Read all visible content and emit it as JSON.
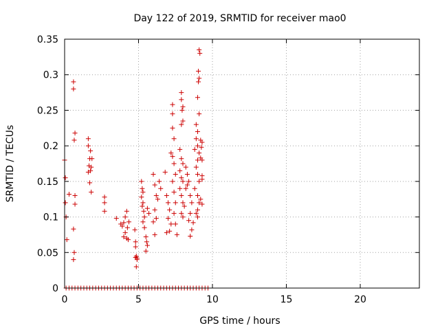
{
  "chart_data": {
    "type": "scatter",
    "title": "Day 122 of 2019, SRMTID for receiver mao0",
    "xlabel": "GPS time / hours",
    "ylabel": "SRMTID / TECUs",
    "xlim": [
      0,
      24
    ],
    "ylim": [
      0,
      0.35
    ],
    "xticks": [
      0,
      5,
      10,
      15,
      20
    ],
    "yticks": [
      0,
      0.05,
      0.1,
      0.15,
      0.2,
      0.25,
      0.3,
      0.35
    ],
    "xtick_labels": [
      "0",
      "5",
      "10",
      "15",
      "20"
    ],
    "ytick_labels": [
      "0",
      "0.05",
      "0.1",
      "0.15",
      "0.2",
      "0.25",
      "0.3",
      "0.35"
    ],
    "grid": true,
    "marker": "+",
    "color": "#cc0000",
    "series": [
      {
        "name": "SRMTID",
        "points": [
          [
            0.0,
            0.18
          ],
          [
            0.05,
            0.155
          ],
          [
            0.05,
            0.12
          ],
          [
            0.1,
            0.1
          ],
          [
            0.15,
            0.068
          ],
          [
            0.3,
            0.132
          ],
          [
            0.6,
            0.29
          ],
          [
            0.6,
            0.28
          ],
          [
            0.7,
            0.218
          ],
          [
            0.65,
            0.208
          ],
          [
            0.7,
            0.13
          ],
          [
            0.7,
            0.118
          ],
          [
            0.6,
            0.083
          ],
          [
            0.65,
            0.05
          ],
          [
            0.6,
            0.04
          ],
          [
            1.6,
            0.21
          ],
          [
            1.6,
            0.2
          ],
          [
            1.75,
            0.193
          ],
          [
            1.7,
            0.182
          ],
          [
            1.85,
            0.182
          ],
          [
            1.65,
            0.172
          ],
          [
            1.8,
            0.17
          ],
          [
            1.75,
            0.165
          ],
          [
            1.6,
            0.163
          ],
          [
            1.7,
            0.148
          ],
          [
            1.8,
            0.135
          ],
          [
            2.7,
            0.128
          ],
          [
            2.7,
            0.12
          ],
          [
            2.7,
            0.108
          ],
          [
            3.5,
            0.098
          ],
          [
            3.8,
            0.09
          ],
          [
            3.9,
            0.087
          ],
          [
            4.0,
            0.092
          ],
          [
            4.1,
            0.1
          ],
          [
            4.2,
            0.108
          ],
          [
            4.0,
            0.072
          ],
          [
            4.1,
            0.078
          ],
          [
            4.2,
            0.07
          ],
          [
            4.3,
            0.068
          ],
          [
            4.25,
            0.085
          ],
          [
            4.35,
            0.093
          ],
          [
            4.8,
            0.065
          ],
          [
            4.8,
            0.058
          ],
          [
            4.85,
            0.045
          ],
          [
            4.8,
            0.043
          ],
          [
            4.9,
            0.04
          ],
          [
            4.85,
            0.03
          ],
          [
            4.9,
            0.042
          ],
          [
            4.75,
            0.082
          ],
          [
            5.2,
            0.15
          ],
          [
            5.25,
            0.14
          ],
          [
            5.3,
            0.135
          ],
          [
            5.2,
            0.128
          ],
          [
            5.3,
            0.12
          ],
          [
            5.25,
            0.115
          ],
          [
            5.35,
            0.108
          ],
          [
            5.4,
            0.1
          ],
          [
            5.3,
            0.093
          ],
          [
            5.4,
            0.085
          ],
          [
            5.5,
            0.072
          ],
          [
            5.55,
            0.065
          ],
          [
            5.6,
            0.06
          ],
          [
            5.5,
            0.052
          ],
          [
            5.6,
            0.112
          ],
          [
            5.7,
            0.105
          ],
          [
            6.0,
            0.16
          ],
          [
            6.1,
            0.145
          ],
          [
            6.2,
            0.13
          ],
          [
            6.3,
            0.125
          ],
          [
            6.1,
            0.11
          ],
          [
            6.2,
            0.098
          ],
          [
            6.0,
            0.093
          ],
          [
            6.1,
            0.075
          ],
          [
            6.4,
            0.15
          ],
          [
            6.5,
            0.14
          ],
          [
            6.8,
            0.163
          ],
          [
            6.9,
            0.13
          ],
          [
            7.0,
            0.12
          ],
          [
            7.1,
            0.11
          ],
          [
            7.0,
            0.098
          ],
          [
            7.2,
            0.09
          ],
          [
            6.9,
            0.078
          ],
          [
            7.1,
            0.08
          ],
          [
            7.3,
            0.258
          ],
          [
            7.3,
            0.245
          ],
          [
            7.3,
            0.225
          ],
          [
            7.4,
            0.21
          ],
          [
            7.2,
            0.19
          ],
          [
            7.4,
            0.175
          ],
          [
            7.5,
            0.16
          ],
          [
            7.3,
            0.15
          ],
          [
            7.4,
            0.135
          ],
          [
            7.5,
            0.12
          ],
          [
            7.4,
            0.105
          ],
          [
            7.5,
            0.09
          ],
          [
            7.6,
            0.075
          ],
          [
            7.3,
            0.185
          ],
          [
            7.8,
            0.195
          ],
          [
            7.9,
            0.182
          ],
          [
            8.0,
            0.175
          ],
          [
            7.8,
            0.165
          ],
          [
            7.9,
            0.155
          ],
          [
            8.0,
            0.15
          ],
          [
            7.8,
            0.14
          ],
          [
            7.9,
            0.13
          ],
          [
            8.0,
            0.12
          ],
          [
            8.1,
            0.115
          ],
          [
            7.9,
            0.105
          ],
          [
            8.0,
            0.1
          ],
          [
            7.9,
            0.275
          ],
          [
            7.9,
            0.265
          ],
          [
            8.0,
            0.255
          ],
          [
            7.95,
            0.25
          ],
          [
            8.0,
            0.235
          ],
          [
            7.9,
            0.23
          ],
          [
            8.2,
            0.17
          ],
          [
            8.3,
            0.16
          ],
          [
            8.4,
            0.15
          ],
          [
            8.3,
            0.145
          ],
          [
            8.2,
            0.14
          ],
          [
            8.5,
            0.13
          ],
          [
            8.6,
            0.12
          ],
          [
            8.5,
            0.105
          ],
          [
            8.7,
            0.092
          ],
          [
            8.6,
            0.082
          ],
          [
            8.5,
            0.073
          ],
          [
            8.4,
            0.095
          ],
          [
            8.9,
            0.23
          ],
          [
            9.0,
            0.22
          ],
          [
            8.9,
            0.21
          ],
          [
            9.0,
            0.2
          ],
          [
            8.8,
            0.195
          ],
          [
            9.1,
            0.19
          ],
          [
            9.0,
            0.18
          ],
          [
            8.9,
            0.17
          ],
          [
            9.0,
            0.16
          ],
          [
            9.1,
            0.15
          ],
          [
            8.8,
            0.14
          ],
          [
            9.0,
            0.13
          ],
          [
            9.1,
            0.12
          ],
          [
            9.0,
            0.11
          ],
          [
            8.9,
            0.105
          ],
          [
            9.0,
            0.1
          ],
          [
            9.1,
            0.335
          ],
          [
            9.15,
            0.33
          ],
          [
            9.05,
            0.305
          ],
          [
            9.1,
            0.295
          ],
          [
            9.05,
            0.29
          ],
          [
            9.0,
            0.268
          ],
          [
            9.1,
            0.245
          ],
          [
            9.2,
            0.208
          ],
          [
            9.3,
            0.205
          ],
          [
            9.25,
            0.198
          ],
          [
            9.2,
            0.183
          ],
          [
            9.3,
            0.18
          ],
          [
            9.3,
            0.158
          ],
          [
            9.3,
            0.153
          ],
          [
            9.2,
            0.125
          ],
          [
            9.3,
            0.118
          ],
          [
            0.1,
            0
          ],
          [
            0.3,
            0
          ],
          [
            0.5,
            0
          ],
          [
            0.7,
            0
          ],
          [
            0.9,
            0
          ],
          [
            1.1,
            0
          ],
          [
            1.3,
            0
          ],
          [
            1.5,
            0
          ],
          [
            1.7,
            0
          ],
          [
            1.9,
            0
          ],
          [
            2.1,
            0
          ],
          [
            2.3,
            0
          ],
          [
            2.5,
            0
          ],
          [
            2.7,
            0
          ],
          [
            2.9,
            0
          ],
          [
            3.1,
            0
          ],
          [
            3.3,
            0
          ],
          [
            3.5,
            0
          ],
          [
            3.7,
            0
          ],
          [
            3.9,
            0
          ],
          [
            4.1,
            0
          ],
          [
            4.3,
            0
          ],
          [
            4.5,
            0
          ],
          [
            4.7,
            0
          ],
          [
            4.9,
            0
          ],
          [
            5.1,
            0
          ],
          [
            5.3,
            0
          ],
          [
            5.5,
            0
          ],
          [
            5.7,
            0
          ],
          [
            5.9,
            0
          ],
          [
            6.1,
            0
          ],
          [
            6.3,
            0
          ],
          [
            6.5,
            0
          ],
          [
            6.7,
            0
          ],
          [
            6.9,
            0
          ],
          [
            7.1,
            0
          ],
          [
            7.3,
            0
          ],
          [
            7.5,
            0
          ],
          [
            7.7,
            0
          ],
          [
            7.9,
            0
          ],
          [
            8.1,
            0
          ],
          [
            8.3,
            0
          ],
          [
            8.5,
            0
          ],
          [
            8.7,
            0
          ],
          [
            8.9,
            0
          ],
          [
            9.1,
            0
          ],
          [
            9.3,
            0
          ],
          [
            9.5,
            0
          ],
          [
            9.7,
            0
          ]
        ]
      }
    ]
  }
}
